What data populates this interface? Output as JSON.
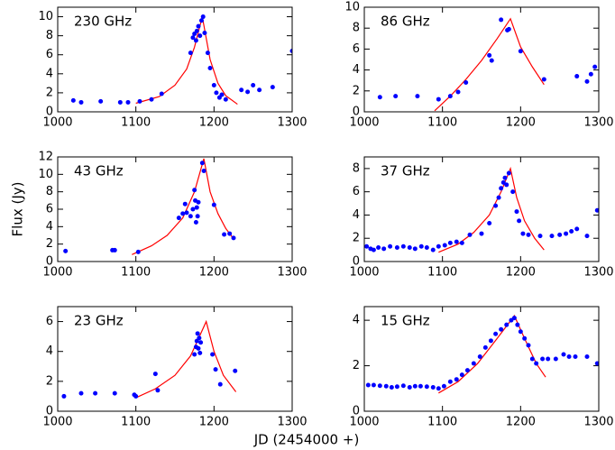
{
  "shared_axes": {
    "xlabel": "JD (2454000 +)",
    "ylabel": "Flux (Jy)"
  },
  "chart_data": [
    {
      "type": "scatter",
      "annotation": "230 GHz",
      "xlim": [
        1000,
        1300
      ],
      "ylim": [
        0,
        11
      ],
      "xticks": [
        1000,
        1100,
        1200,
        1300
      ],
      "yticks": [
        0,
        2,
        4,
        6,
        8,
        10
      ],
      "points": {
        "color": "#0000ff",
        "x": [
          1020,
          1030,
          1055,
          1080,
          1090,
          1105,
          1120,
          1133,
          1170,
          1173,
          1175,
          1177,
          1178,
          1180,
          1182,
          1184,
          1186,
          1188,
          1192,
          1195,
          1200,
          1203,
          1207,
          1210,
          1215,
          1235,
          1243,
          1250,
          1258,
          1275,
          1300
        ],
        "values": [
          1.2,
          1.0,
          1.1,
          1.0,
          1.0,
          1.1,
          1.3,
          1.9,
          6.2,
          7.8,
          8.2,
          7.5,
          8.5,
          9.0,
          8.0,
          9.6,
          10.0,
          8.3,
          6.2,
          4.6,
          2.8,
          2.0,
          1.5,
          1.8,
          1.3,
          2.3,
          2.1,
          2.8,
          2.3,
          2.6,
          6.4
        ]
      },
      "fit": {
        "color": "#ff0000",
        "x": [
          1100,
          1130,
          1150,
          1165,
          1175,
          1185,
          1195,
          1205,
          1215,
          1230
        ],
        "values": [
          0.9,
          1.6,
          2.8,
          4.5,
          6.8,
          10,
          5.5,
          3,
          1.7,
          0.8
        ]
      }
    },
    {
      "type": "scatter",
      "annotation": "86 GHz",
      "xlim": [
        1000,
        1300
      ],
      "ylim": [
        0,
        10
      ],
      "xticks": [
        1000,
        1100,
        1200,
        1300
      ],
      "yticks": [
        0,
        2,
        4,
        6,
        8,
        10
      ],
      "points": {
        "color": "#0000ff",
        "x": [
          1020,
          1040,
          1068,
          1095,
          1110,
          1120,
          1130,
          1160,
          1163,
          1175,
          1183,
          1185,
          1200,
          1230,
          1272,
          1285,
          1290,
          1295
        ],
        "values": [
          1.4,
          1.5,
          1.5,
          1.2,
          1.5,
          1.9,
          2.8,
          5.4,
          4.9,
          8.8,
          7.8,
          7.9,
          5.8,
          3.1,
          3.4,
          2.9,
          3.6,
          4.3
        ]
      },
      "fit": {
        "color": "#ff0000",
        "x": [
          1090,
          1110,
          1130,
          1150,
          1170,
          1187,
          1200,
          1215,
          1230
        ],
        "values": [
          0.1,
          1.5,
          3.1,
          4.9,
          7,
          8.9,
          6.2,
          4.3,
          2.6
        ]
      }
    },
    {
      "type": "scatter",
      "annotation": "43 GHz",
      "xlim": [
        1000,
        1300
      ],
      "ylim": [
        0,
        12
      ],
      "xticks": [
        1000,
        1100,
        1200,
        1300
      ],
      "yticks": [
        0,
        2,
        4,
        6,
        8,
        10,
        12
      ],
      "points": {
        "color": "#0000ff",
        "x": [
          1010,
          1070,
          1073,
          1103,
          1155,
          1160,
          1163,
          1165,
          1170,
          1173,
          1175,
          1176,
          1177,
          1178,
          1179,
          1180,
          1185,
          1187,
          1200,
          1213,
          1220,
          1225
        ],
        "values": [
          1.2,
          1.3,
          1.3,
          1.1,
          5,
          5.5,
          6.6,
          5.6,
          5.2,
          6,
          8.2,
          7,
          4.5,
          6.2,
          5.2,
          6.8,
          11.3,
          10.4,
          6.5,
          3.1,
          3.2,
          2.7
        ]
      },
      "fit": {
        "color": "#ff0000",
        "x": [
          1095,
          1120,
          1140,
          1160,
          1175,
          1187,
          1195,
          1205,
          1215,
          1225
        ],
        "values": [
          0.8,
          1.8,
          3,
          5,
          8,
          11.8,
          8,
          5.5,
          3.8,
          2.6
        ]
      }
    },
    {
      "type": "scatter",
      "annotation": "37 GHz",
      "xlim": [
        1000,
        1300
      ],
      "ylim": [
        0,
        9
      ],
      "xticks": [
        1000,
        1100,
        1200,
        1300
      ],
      "yticks": [
        0,
        2,
        4,
        6,
        8
      ],
      "points": {
        "color": "#0000ff",
        "x": [
          1003,
          1008,
          1012,
          1018,
          1025,
          1033,
          1042,
          1050,
          1058,
          1065,
          1073,
          1080,
          1088,
          1095,
          1103,
          1110,
          1118,
          1125,
          1135,
          1150,
          1160,
          1168,
          1172,
          1175,
          1178,
          1180,
          1182,
          1185,
          1190,
          1195,
          1198,
          1203,
          1210,
          1225,
          1240,
          1250,
          1258,
          1265,
          1272,
          1285,
          1298
        ],
        "values": [
          1.3,
          1.1,
          1.0,
          1.2,
          1.1,
          1.3,
          1.2,
          1.3,
          1.2,
          1.1,
          1.3,
          1.2,
          1.0,
          1.3,
          1.4,
          1.6,
          1.7,
          1.6,
          2.3,
          2.4,
          3.3,
          4.8,
          5.5,
          6.3,
          6.8,
          7.2,
          6.6,
          7.6,
          6.0,
          4.3,
          3.5,
          2.4,
          2.3,
          2.2,
          2.2,
          2.3,
          2.4,
          2.6,
          2.8,
          2.2,
          4.4
        ]
      },
      "fit": {
        "color": "#ff0000",
        "x": [
          1095,
          1120,
          1140,
          1160,
          1175,
          1187,
          1195,
          1205,
          1218,
          1230
        ],
        "values": [
          0.8,
          1.5,
          2.5,
          4,
          6,
          8,
          5.5,
          3.5,
          2,
          1
        ]
      }
    },
    {
      "type": "scatter",
      "annotation": "23 GHz",
      "xlim": [
        1000,
        1300
      ],
      "ylim": [
        0,
        7
      ],
      "xticks": [
        1000,
        1100,
        1200,
        1300
      ],
      "yticks": [
        0,
        2,
        4,
        6
      ],
      "points": {
        "color": "#0000ff",
        "x": [
          1008,
          1030,
          1048,
          1073,
          1098,
          1100,
          1125,
          1128,
          1175,
          1177,
          1178,
          1179,
          1180,
          1181,
          1182,
          1183,
          1198,
          1202,
          1208,
          1227
        ],
        "values": [
          1,
          1.2,
          1.2,
          1.2,
          1.1,
          1.0,
          2.5,
          1.4,
          3.8,
          4.3,
          4.7,
          5.2,
          4.2,
          4.9,
          3.9,
          4.6,
          3.8,
          2.8,
          1.8,
          2.7
        ]
      },
      "fit": {
        "color": "#ff0000",
        "x": [
          1100,
          1125,
          1150,
          1170,
          1190,
          1200,
          1212,
          1228
        ],
        "values": [
          0.9,
          1.5,
          2.4,
          3.7,
          6,
          4,
          2.4,
          1.3
        ]
      }
    },
    {
      "type": "scatter",
      "annotation": "15 GHz",
      "xlim": [
        1000,
        1300
      ],
      "ylim": [
        0,
        4.6
      ],
      "xticks": [
        1000,
        1100,
        1200,
        1300
      ],
      "yticks": [
        0,
        2,
        4
      ],
      "points": {
        "color": "#0000ff",
        "x": [
          1005,
          1012,
          1020,
          1028,
          1035,
          1042,
          1050,
          1058,
          1065,
          1072,
          1080,
          1088,
          1095,
          1102,
          1110,
          1118,
          1125,
          1132,
          1140,
          1148,
          1155,
          1162,
          1168,
          1175,
          1182,
          1188,
          1192,
          1196,
          1200,
          1205,
          1210,
          1215,
          1220,
          1228,
          1235,
          1245,
          1255,
          1262,
          1270,
          1285,
          1298
        ],
        "values": [
          1.15,
          1.15,
          1.12,
          1.1,
          1.05,
          1.08,
          1.12,
          1.05,
          1.1,
          1.1,
          1.08,
          1.05,
          1.0,
          1.1,
          1.3,
          1.4,
          1.6,
          1.8,
          2.1,
          2.4,
          2.8,
          3.1,
          3.4,
          3.6,
          3.8,
          4.0,
          4.1,
          3.8,
          3.5,
          3.2,
          2.9,
          2.3,
          2.1,
          2.3,
          2.3,
          2.3,
          2.5,
          2.4,
          2.4,
          2.4,
          2.1
        ]
      },
      "fit": {
        "color": "#ff0000",
        "x": [
          1095,
          1120,
          1145,
          1170,
          1192,
          1205,
          1220,
          1232
        ],
        "values": [
          0.8,
          1.3,
          2.1,
          3.2,
          4.2,
          3.2,
          2.1,
          1.5
        ]
      }
    }
  ]
}
